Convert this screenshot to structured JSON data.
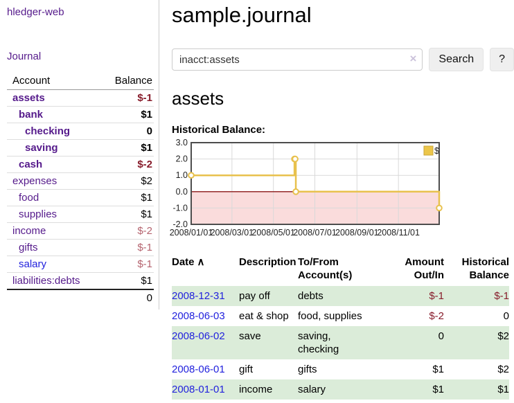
{
  "sidebar": {
    "brand": "hledger-web",
    "nav": {
      "journal": "Journal"
    },
    "accounts": {
      "account_header": "Account",
      "balance_header": "Balance",
      "rows": [
        {
          "name": "assets",
          "balance": "$-1",
          "level": 1,
          "bold": true,
          "balance_style": "neg-strong",
          "blue": false
        },
        {
          "name": "bank",
          "balance": "$1",
          "level": 2,
          "bold": true,
          "balance_style": "",
          "blue": false
        },
        {
          "name": "checking",
          "balance": "0",
          "level": 3,
          "bold": true,
          "balance_style": "",
          "blue": false
        },
        {
          "name": "saving",
          "balance": "$1",
          "level": 3,
          "bold": true,
          "balance_style": "",
          "blue": false
        },
        {
          "name": "cash",
          "balance": "$-2",
          "level": 2,
          "bold": true,
          "balance_style": "neg-strong",
          "blue": false
        },
        {
          "name": "expenses",
          "balance": "$2",
          "level": 1,
          "bold": false,
          "balance_style": "",
          "blue": false
        },
        {
          "name": "food",
          "balance": "$1",
          "level": 2,
          "bold": false,
          "balance_style": "",
          "blue": false
        },
        {
          "name": "supplies",
          "balance": "$1",
          "level": 2,
          "bold": false,
          "balance_style": "",
          "blue": false
        },
        {
          "name": "income",
          "balance": "$-2",
          "level": 1,
          "bold": false,
          "balance_style": "neg-soft",
          "blue": false
        },
        {
          "name": "gifts",
          "balance": "$-1",
          "level": 2,
          "bold": false,
          "balance_style": "neg-soft",
          "blue": false
        },
        {
          "name": "salary",
          "balance": "$-1",
          "level": 2,
          "bold": false,
          "balance_style": "neg-soft",
          "blue": true
        },
        {
          "name": "liabilities:debts",
          "balance": "$1",
          "level": 1,
          "bold": false,
          "balance_style": "",
          "blue": false
        }
      ],
      "total": "0"
    }
  },
  "main": {
    "title": "sample.journal",
    "search": {
      "value": "inacct:assets",
      "clear_icon": "×",
      "search_button": "Search",
      "help_button": "?"
    },
    "account_heading": "assets",
    "chart_title": "Historical Balance:"
  },
  "chart_data": {
    "type": "line",
    "step": true,
    "title": "Historical Balance",
    "series": [
      {
        "name": "$",
        "color": "#e8c14d",
        "points": [
          [
            "2008-01-01",
            1
          ],
          [
            "2008-06-01",
            2
          ],
          [
            "2008-06-02",
            2
          ],
          [
            "2008-06-03",
            0
          ],
          [
            "2008-12-31",
            -1
          ]
        ]
      }
    ],
    "x_range": [
      "2008-01-01",
      "2008-12-31"
    ],
    "x_ticks": [
      "2008/01/01",
      "2008/03/01",
      "2008/05/01",
      "2008/07/01",
      "2008/09/01",
      "2008/11/01"
    ],
    "y_ticks": [
      3.0,
      2.0,
      1.0,
      0.0,
      -1.0,
      -2.0
    ],
    "ylim": [
      -2,
      3
    ],
    "grid": true,
    "legend": {
      "label": "$",
      "position": "top-right",
      "swatch_fill": "#ecc64a",
      "swatch_stroke": "#caa53a"
    },
    "negative_region_color": "#fadcdc",
    "zero_line_color": "#8c1717",
    "grid_color": "#d9d9d9",
    "border_color": "#4d4d4d",
    "marker_fill": "#ffffff"
  },
  "register": {
    "headers": {
      "date": "Date",
      "sort_icon": "∧",
      "description": "Description",
      "tofrom": "To/From\nAccount(s)",
      "amount": "Amount\nOut/In",
      "balance": "Historical\nBalance"
    },
    "rows": [
      {
        "date": "2008-12-31",
        "description": "pay off",
        "accounts": "debts",
        "amount": "$-1",
        "amount_neg": true,
        "balance": "$-1",
        "balance_neg": true
      },
      {
        "date": "2008-06-03",
        "description": "eat & shop",
        "accounts": "food, supplies",
        "amount": "$-2",
        "amount_neg": true,
        "balance": "0",
        "balance_neg": false
      },
      {
        "date": "2008-06-02",
        "description": "save",
        "accounts": "saving, checking",
        "amount": "0",
        "amount_neg": false,
        "balance": "$2",
        "balance_neg": false
      },
      {
        "date": "2008-06-01",
        "description": "gift",
        "accounts": "gifts",
        "amount": "$1",
        "amount_neg": false,
        "balance": "$2",
        "balance_neg": false
      },
      {
        "date": "2008-01-01",
        "description": "income",
        "accounts": "salary",
        "amount": "$1",
        "amount_neg": false,
        "balance": "$1",
        "balance_neg": false
      }
    ]
  },
  "colors": {
    "link_purple": "#551a8b",
    "link_blue": "#2222dd",
    "negative_strong": "#871c2b",
    "negative_soft": "#b5646f",
    "row_green": "#dbecd9",
    "sidebar_divider": "#cccccc"
  }
}
